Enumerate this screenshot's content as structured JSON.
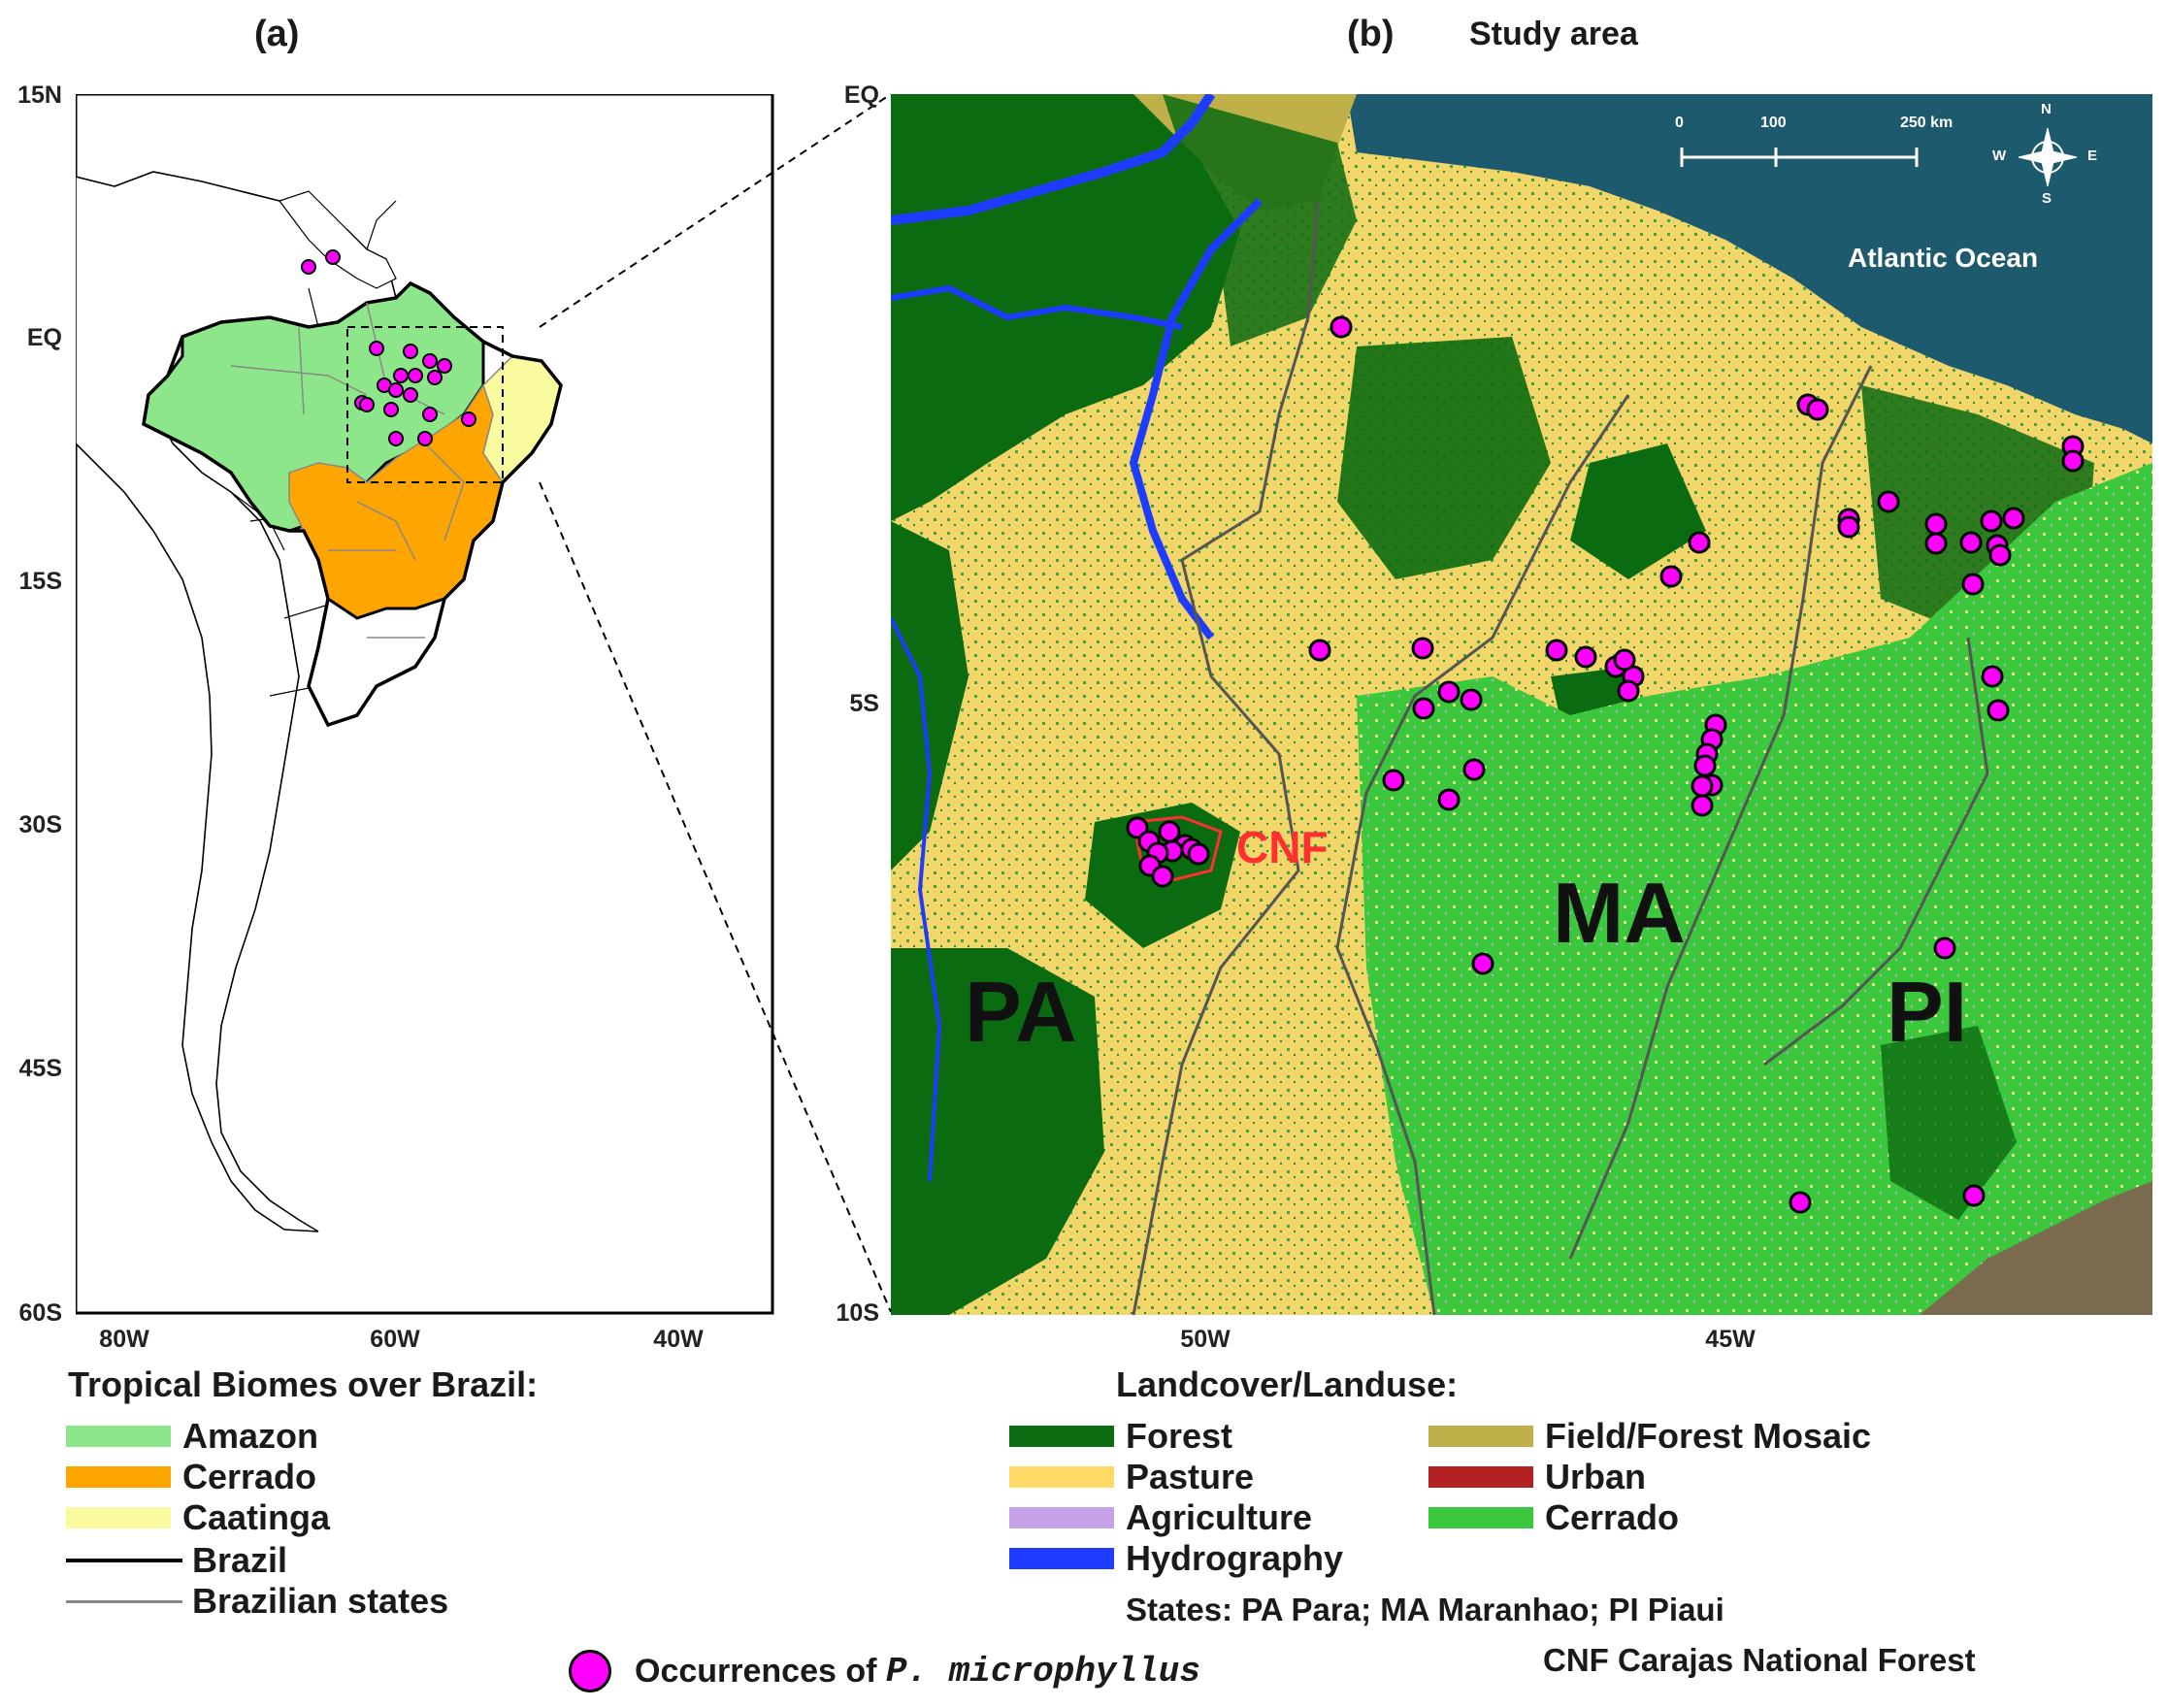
{
  "panel_a": {
    "label": "(a)",
    "y_ticks": [
      "15N",
      "EQ",
      "15S",
      "30S",
      "45S",
      "60S"
    ],
    "x_ticks": [
      "80W",
      "60W",
      "40W"
    ],
    "legend_title": "Tropical Biomes over Brazil:",
    "biomes": [
      {
        "label": "Amazon",
        "color": "#8ee68a"
      },
      {
        "label": "Cerrado",
        "color": "#ffa500"
      },
      {
        "label": "Caatinga",
        "color": "#fafa9e"
      }
    ],
    "lines": [
      {
        "label": "Brazil",
        "color": "#000000"
      },
      {
        "label": "Brazilian states",
        "color": "#888888"
      }
    ]
  },
  "panel_b": {
    "label": "(b)",
    "title": "Study area",
    "y_ticks": [
      "EQ",
      "5S",
      "10S"
    ],
    "x_ticks": [
      "50W",
      "45W"
    ],
    "scale_bar": {
      "ticks": [
        "0",
        "100",
        "250 km"
      ]
    },
    "compass": {
      "n": "N",
      "s": "S",
      "e": "E",
      "w": "W"
    },
    "ocean_label": "Atlantic Ocean",
    "state_labels": {
      "pa": "PA",
      "ma": "MA",
      "pi": "PI"
    },
    "cnf_label": "CNF",
    "legend_title": "Landcover/Landuse:",
    "landcover": [
      {
        "label": "Forest",
        "color": "#0b6b10"
      },
      {
        "label": "Pasture",
        "color": "#ffd966"
      },
      {
        "label": "Agriculture",
        "color": "#c8a2e8"
      },
      {
        "label": "Hydrography",
        "color": "#1e3cff"
      },
      {
        "label": "Field/Forest Mosaic",
        "color": "#bfb04a"
      },
      {
        "label": "Urban",
        "color": "#b22222"
      },
      {
        "label": "Cerrado",
        "color": "#3cc83c"
      }
    ],
    "states_note": "States: PA Para; MA Maranhao; PI Piaui",
    "cnf_note": "CNF Carajas National Forest"
  },
  "occurrence_legend": {
    "prefix": "Occurrences of ",
    "species": "P. microphyllus",
    "color": "#ff00ff"
  }
}
